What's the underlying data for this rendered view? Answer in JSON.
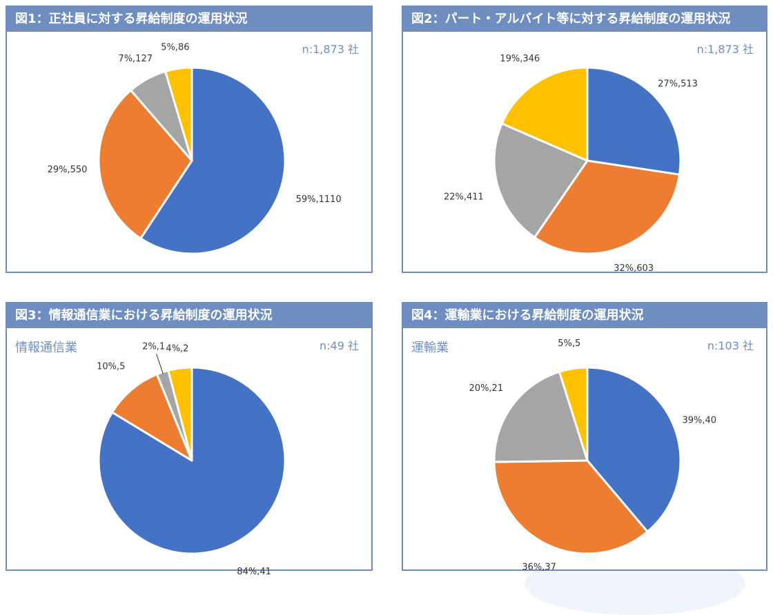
{
  "colors": {
    "header": "#6e8dc0",
    "series": [
      "#4472c4",
      "#ed7d31",
      "#a5a5a5",
      "#ffc000"
    ]
  },
  "chart_data": [
    {
      "type": "pie",
      "title": "図1：正社員に対する昇給制度の運用状況",
      "n_label": "n:1,873 社",
      "subtitle": "",
      "slices": [
        {
          "value": 1110,
          "label": "59%,1110"
        },
        {
          "value": 550,
          "label": "29%,550"
        },
        {
          "value": 127,
          "label": "7%,127"
        },
        {
          "value": 86,
          "label": "5%,86"
        }
      ]
    },
    {
      "type": "pie",
      "title": "図2：パート・アルバイト等に対する昇給制度の運用状況",
      "n_label": "n:1,873 社",
      "subtitle": "",
      "slices": [
        {
          "value": 513,
          "label": "27%,513"
        },
        {
          "value": 603,
          "label": "32%,603"
        },
        {
          "value": 411,
          "label": "22%,411"
        },
        {
          "value": 346,
          "label": "19%,346"
        }
      ]
    },
    {
      "type": "pie",
      "title": "図3：情報通信業における昇給制度の運用状況",
      "n_label": "n:49 社",
      "subtitle": "情報通信業",
      "slices": [
        {
          "value": 41,
          "label": "84%,41"
        },
        {
          "value": 5,
          "label": "10%,5"
        },
        {
          "value": 1,
          "label": "2%,1"
        },
        {
          "value": 2,
          "label": "4%,2"
        }
      ]
    },
    {
      "type": "pie",
      "title": "図4：運輸業における昇給制度の運用状況",
      "n_label": "n:103 社",
      "subtitle": "運輸業",
      "slices": [
        {
          "value": 40,
          "label": "39%,40"
        },
        {
          "value": 37,
          "label": "36%,37"
        },
        {
          "value": 21,
          "label": "20%,21"
        },
        {
          "value": 5,
          "label": "5%,5"
        }
      ]
    }
  ]
}
